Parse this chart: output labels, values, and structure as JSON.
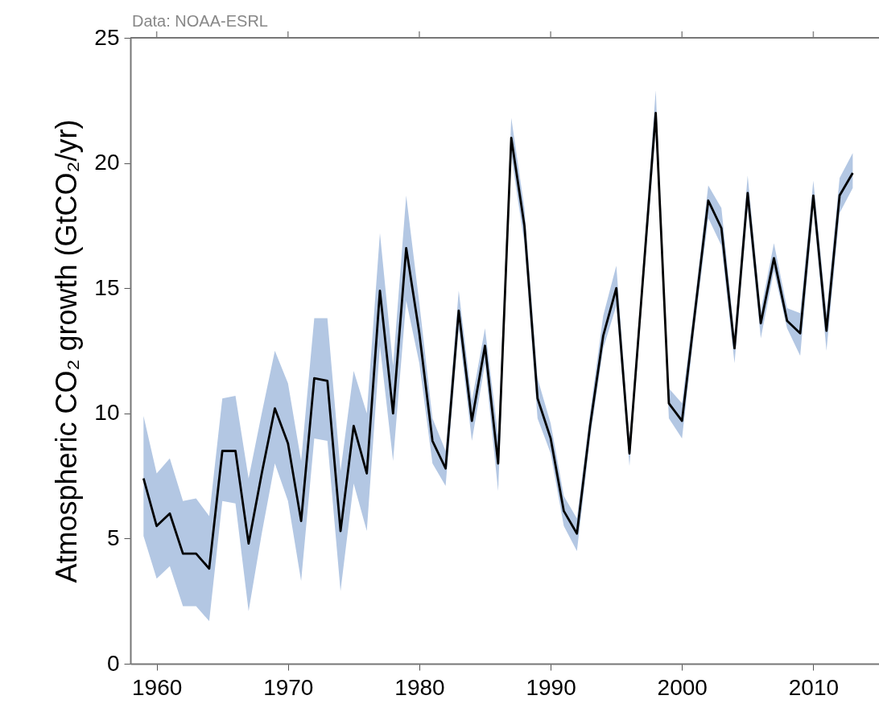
{
  "chart_data": {
    "type": "line",
    "ylabel": "Atmospheric CO₂ growth (GtCO₂/yr)",
    "annotations": [
      "Data: NOAA-ESRL"
    ],
    "x": [
      1959,
      1960,
      1961,
      1962,
      1963,
      1964,
      1965,
      1966,
      1967,
      1968,
      1969,
      1970,
      1971,
      1972,
      1973,
      1974,
      1975,
      1976,
      1977,
      1978,
      1979,
      1980,
      1981,
      1982,
      1983,
      1984,
      1985,
      1986,
      1987,
      1988,
      1989,
      1990,
      1991,
      1992,
      1993,
      1994,
      1995,
      1996,
      1997,
      1998,
      1999,
      2000,
      2001,
      2002,
      2003,
      2004,
      2005,
      2006,
      2007,
      2008,
      2009,
      2010,
      2011,
      2012,
      2013
    ],
    "series": [
      {
        "color": "#000000",
        "values": [
          7.4,
          5.5,
          6.0,
          4.4,
          4.4,
          3.8,
          8.5,
          8.5,
          4.8,
          7.6,
          10.2,
          8.8,
          5.7,
          11.4,
          11.3,
          5.3,
          9.5,
          7.6,
          14.9,
          10.0,
          16.6,
          13.2,
          8.9,
          7.8,
          14.1,
          9.7,
          12.7,
          8.0,
          21.0,
          17.5,
          10.6,
          9.0,
          6.1,
          5.2,
          9.5,
          13.1,
          15.0,
          8.4,
          15.2,
          22.0,
          10.4,
          9.7,
          14.1,
          18.5,
          17.4,
          12.6,
          18.8,
          13.6,
          16.2,
          13.7,
          13.2,
          18.7,
          13.3,
          18.7,
          19.6
        ],
        "lower": [
          5.1,
          3.4,
          3.9,
          2.3,
          2.3,
          1.7,
          6.5,
          6.4,
          2.1,
          5.2,
          8.0,
          6.5,
          3.3,
          9.0,
          8.9,
          2.9,
          7.2,
          5.3,
          12.7,
          8.1,
          14.5,
          12.0,
          8.0,
          7.1,
          13.4,
          8.9,
          12.0,
          6.9,
          20.3,
          16.8,
          9.8,
          8.4,
          5.5,
          4.5,
          9.0,
          12.6,
          14.3,
          7.9,
          14.7,
          21.3,
          9.8,
          9.0,
          13.6,
          17.8,
          16.7,
          12.0,
          18.2,
          13.0,
          15.7,
          13.4,
          12.3,
          18.2,
          12.5,
          18.0,
          19.0
        ],
        "upper": [
          9.9,
          7.6,
          8.2,
          6.5,
          6.6,
          5.9,
          10.6,
          10.7,
          7.4,
          10.0,
          12.5,
          11.2,
          8.1,
          13.8,
          13.8,
          7.7,
          11.7,
          10.0,
          17.2,
          11.9,
          18.7,
          14.4,
          9.8,
          8.5,
          14.9,
          10.5,
          13.4,
          9.1,
          21.8,
          18.2,
          11.4,
          9.6,
          6.7,
          5.8,
          10.0,
          13.9,
          15.9,
          8.9,
          15.7,
          22.9,
          11.0,
          10.4,
          14.6,
          19.1,
          18.2,
          13.1,
          19.5,
          14.1,
          16.8,
          14.2,
          14.0,
          19.3,
          14.0,
          19.4,
          20.4
        ]
      }
    ],
    "xlim": [
      1958,
      2015
    ],
    "xticks": [
      1960,
      1970,
      1980,
      1990,
      2000,
      2010
    ],
    "ylim": [
      0,
      25
    ],
    "yticks": [
      0,
      5,
      10,
      15,
      20,
      25
    ],
    "grid": false,
    "marker": "none",
    "line_style": "solid"
  }
}
